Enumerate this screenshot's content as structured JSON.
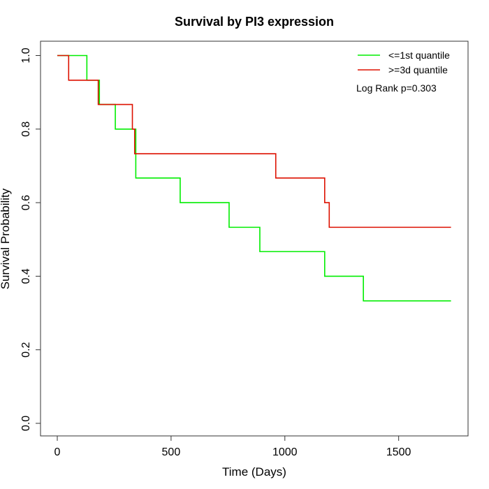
{
  "chart_data": {
    "type": "line",
    "subtype": "kaplan-meier step",
    "title": "Survival by PI3 expression",
    "xlabel": "Time (Days)",
    "ylabel": "Survival Probability",
    "xlim": [
      0,
      1730
    ],
    "ylim": [
      0,
      1
    ],
    "x_ticks": [
      0,
      500,
      1000,
      1500
    ],
    "x_tick_labels": [
      "0",
      "500",
      "1000",
      "1500"
    ],
    "y_ticks": [
      0.0,
      0.2,
      0.4,
      0.6,
      0.8,
      1.0
    ],
    "y_tick_labels": [
      "0.0",
      "0.2",
      "0.4",
      "0.6",
      "0.8",
      "1.0"
    ],
    "grid": false,
    "legend_position": "top-right",
    "annotation": "Log Rank p=0.303",
    "series": [
      {
        "name": "<=1st quantile",
        "color": "#00ee00",
        "x": [
          0,
          130,
          185,
          255,
          345,
          540,
          755,
          890,
          1175,
          1345,
          1730
        ],
        "y": [
          1.0,
          0.933,
          0.867,
          0.8,
          0.667,
          0.6,
          0.533,
          0.467,
          0.4,
          0.333,
          0.333
        ]
      },
      {
        "name": ">=3d quantile",
        "color": "#dd1100",
        "x": [
          0,
          50,
          180,
          330,
          340,
          960,
          1175,
          1195,
          1730
        ],
        "y": [
          1.0,
          0.933,
          0.867,
          0.8,
          0.733,
          0.667,
          0.6,
          0.533,
          0.533
        ]
      }
    ]
  }
}
